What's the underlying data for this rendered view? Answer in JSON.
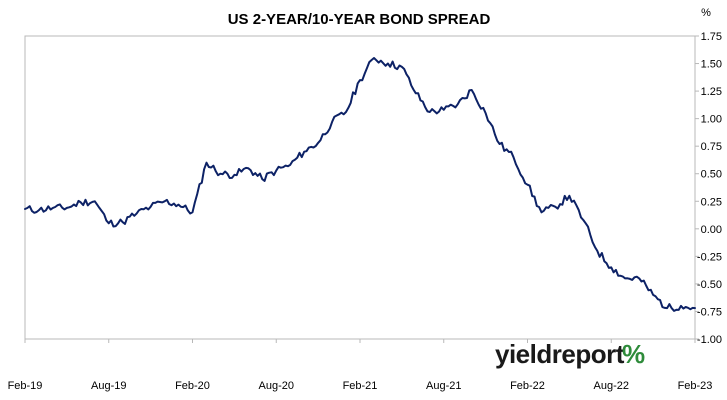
{
  "chart_data": {
    "type": "line",
    "title": "US 2-YEAR/10-YEAR BOND SPREAD",
    "ylabel": "%",
    "xlabel": "",
    "x_tick_labels": [
      "Feb-19",
      "Aug-19",
      "Feb-20",
      "Aug-20",
      "Feb-21",
      "Aug-21",
      "Feb-22",
      "Aug-22",
      "Feb-23"
    ],
    "xlim": [
      "2019-02",
      "2023-02"
    ],
    "ylim": [
      -1.0,
      1.75
    ],
    "y_ticks": [
      1.75,
      1.5,
      1.25,
      1.0,
      0.75,
      0.5,
      0.25,
      0.0,
      -0.25,
      -0.5,
      -0.75,
      -1.0
    ],
    "y_tick_labels": [
      "1.75",
      "1.50",
      "1.25",
      "1.00",
      "0.75",
      "0.50",
      "0.25",
      "0.00",
      "-0.25",
      "-0.50",
      "-0.75",
      "-1.00"
    ],
    "y_axis_position": "right",
    "grid": false,
    "legend": "none",
    "line_color": "#0d2266",
    "series": [
      {
        "x": [
          "2019-02",
          "2019-03",
          "2019-04",
          "2019-05",
          "2019-06",
          "2019-07",
          "2019-08",
          "2019-09",
          "2019-10",
          "2019-11",
          "2019-12",
          "2020-01",
          "2020-02",
          "2020-03",
          "2020-04",
          "2020-05",
          "2020-06",
          "2020-07",
          "2020-08",
          "2020-09",
          "2020-10",
          "2020-11",
          "2020-12",
          "2021-01",
          "2021-02",
          "2021-03",
          "2021-04",
          "2021-05",
          "2021-06",
          "2021-07",
          "2021-08",
          "2021-09",
          "2021-10",
          "2021-11",
          "2021-12",
          "2022-01",
          "2022-02",
          "2022-03",
          "2022-04",
          "2022-05",
          "2022-06",
          "2022-07",
          "2022-08",
          "2022-09",
          "2022-10",
          "2022-11",
          "2022-12",
          "2023-01",
          "2023-02"
        ],
        "values": [
          0.18,
          0.17,
          0.19,
          0.19,
          0.24,
          0.25,
          0.05,
          0.06,
          0.14,
          0.2,
          0.25,
          0.22,
          0.15,
          0.6,
          0.5,
          0.49,
          0.55,
          0.45,
          0.53,
          0.58,
          0.7,
          0.78,
          0.97,
          1.06,
          1.35,
          1.55,
          1.5,
          1.47,
          1.23,
          1.06,
          1.08,
          1.13,
          1.26,
          1.05,
          0.77,
          0.65,
          0.4,
          0.15,
          0.2,
          0.3,
          0.08,
          -0.2,
          -0.35,
          -0.45,
          -0.45,
          -0.6,
          -0.72,
          -0.7,
          -0.72
        ]
      }
    ]
  },
  "logo": {
    "word": "yieldreport",
    "symbol": "%",
    "colors": {
      "word": "#1a1a1a",
      "percent_left": "#2e8b3a",
      "percent_right": "#c0202a"
    }
  }
}
